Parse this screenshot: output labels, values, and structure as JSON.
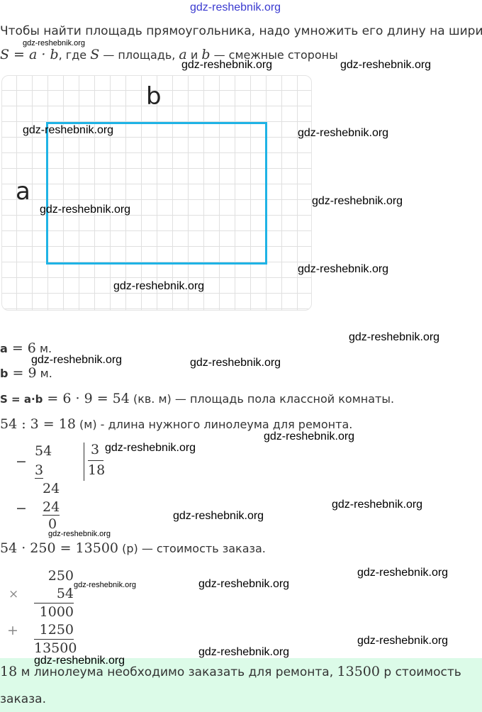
{
  "watermark": "gdz-reshebnik.org",
  "intro": {
    "line1": "Чтобы найти площадь прямоугольника, надо умножить его длину на ширину",
    "formula": "S = a · b",
    "where": ", где ",
    "S": "S",
    "dash_area": " — площадь, ",
    "a": "a",
    "and": " и ",
    "b": "b",
    "dash_sides": " — смежные стороны"
  },
  "figure": {
    "label_b": "b",
    "label_a": "a",
    "rect_color": "#1fb3e5"
  },
  "solution": {
    "a_label": "a",
    "a_eq": " = 6",
    "a_unit": " м.",
    "b_label": "b",
    "b_eq": " = 9",
    "b_unit": " м.",
    "s_label": "S = a·b",
    "s_eq": " = 6 · 9 = 54",
    "s_text": " (кв. м) — площадь пола классной комнаты.",
    "div_eq": "54 : 3 = 18",
    "div_text": " (м) - длина нужного линолеума для ремонта.",
    "mul_eq": "54 · 250 = 13500",
    "mul_text": " (р) — стоимость заказа."
  },
  "long_division": {
    "minus": "−",
    "dividend": "54",
    "sub1": "3",
    "divisor": "3",
    "quotient": "18",
    "rem1": "24",
    "sub2": "24",
    "rem2": "0"
  },
  "multiplication": {
    "times": "×",
    "plus": "+",
    "a": "250",
    "b": "54",
    "p1": "1000",
    "p2": "1250",
    "result": "13500"
  },
  "answer": {
    "n1": "18",
    "t1": " м линолеума необходимо заказать для ремонта, ",
    "n2": "13500",
    "t2": " р стоимость",
    "t3": "заказа."
  },
  "answer_bg": "#dcfbe8"
}
